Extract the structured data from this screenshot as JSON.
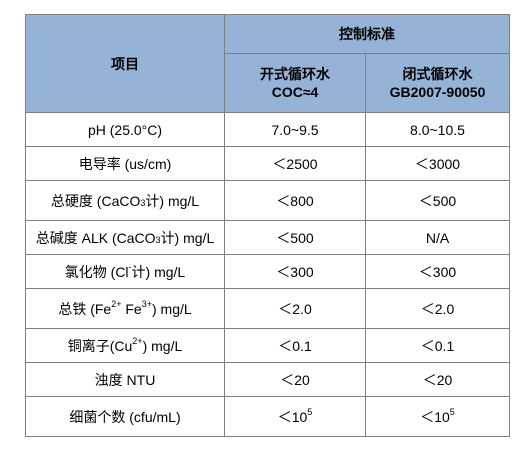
{
  "header": {
    "item": "项目",
    "control_standard": "控制标准",
    "open_system_line1": "开式循环水",
    "open_system_line2": "COC≈4",
    "closed_system_line1": "闭式循环水",
    "closed_system_line2": "GB2007-90050"
  },
  "rows": [
    {
      "item": "pH (25.0°C)",
      "open": "7.0~9.5",
      "closed": "8.0~10.5"
    },
    {
      "item": "电导率 (us/cm)",
      "open": "＜2500",
      "closed": "＜3000"
    },
    {
      "item_pre": "总硬度 (CaCO",
      "item_sub": "3",
      "item_post": "计) mg/L",
      "open": "＜800",
      "closed": "＜500"
    },
    {
      "item_pre": "总碱度 ALK (CaCO",
      "item_sub": "3",
      "item_post": "计) mg/L",
      "open": "＜500",
      "closed": "N/A"
    },
    {
      "item_pre": "氯化物 (Cl",
      "item_sup": "-",
      "item_post": "计) mg/L",
      "open": "＜300",
      "closed": "＜300"
    },
    {
      "item_pre": "总铁 (Fe",
      "item_sup": "2+",
      "item_mid": " Fe",
      "item_sup2": "3+",
      "item_post": ") mg/L",
      "open": "＜2.0",
      "closed": "＜2.0"
    },
    {
      "item_pre": "铜离子(Cu",
      "item_sup": "2+",
      "item_post": ") mg/L",
      "open": "＜0.1",
      "closed": "＜0.1"
    },
    {
      "item": "浊度 NTU",
      "open": "＜20",
      "closed": "＜20"
    },
    {
      "item": "细菌个数 (cfu/mL)",
      "open_pre": "＜10",
      "open_sup": "5",
      "closed_pre": "＜10",
      "closed_sup": "5"
    }
  ]
}
